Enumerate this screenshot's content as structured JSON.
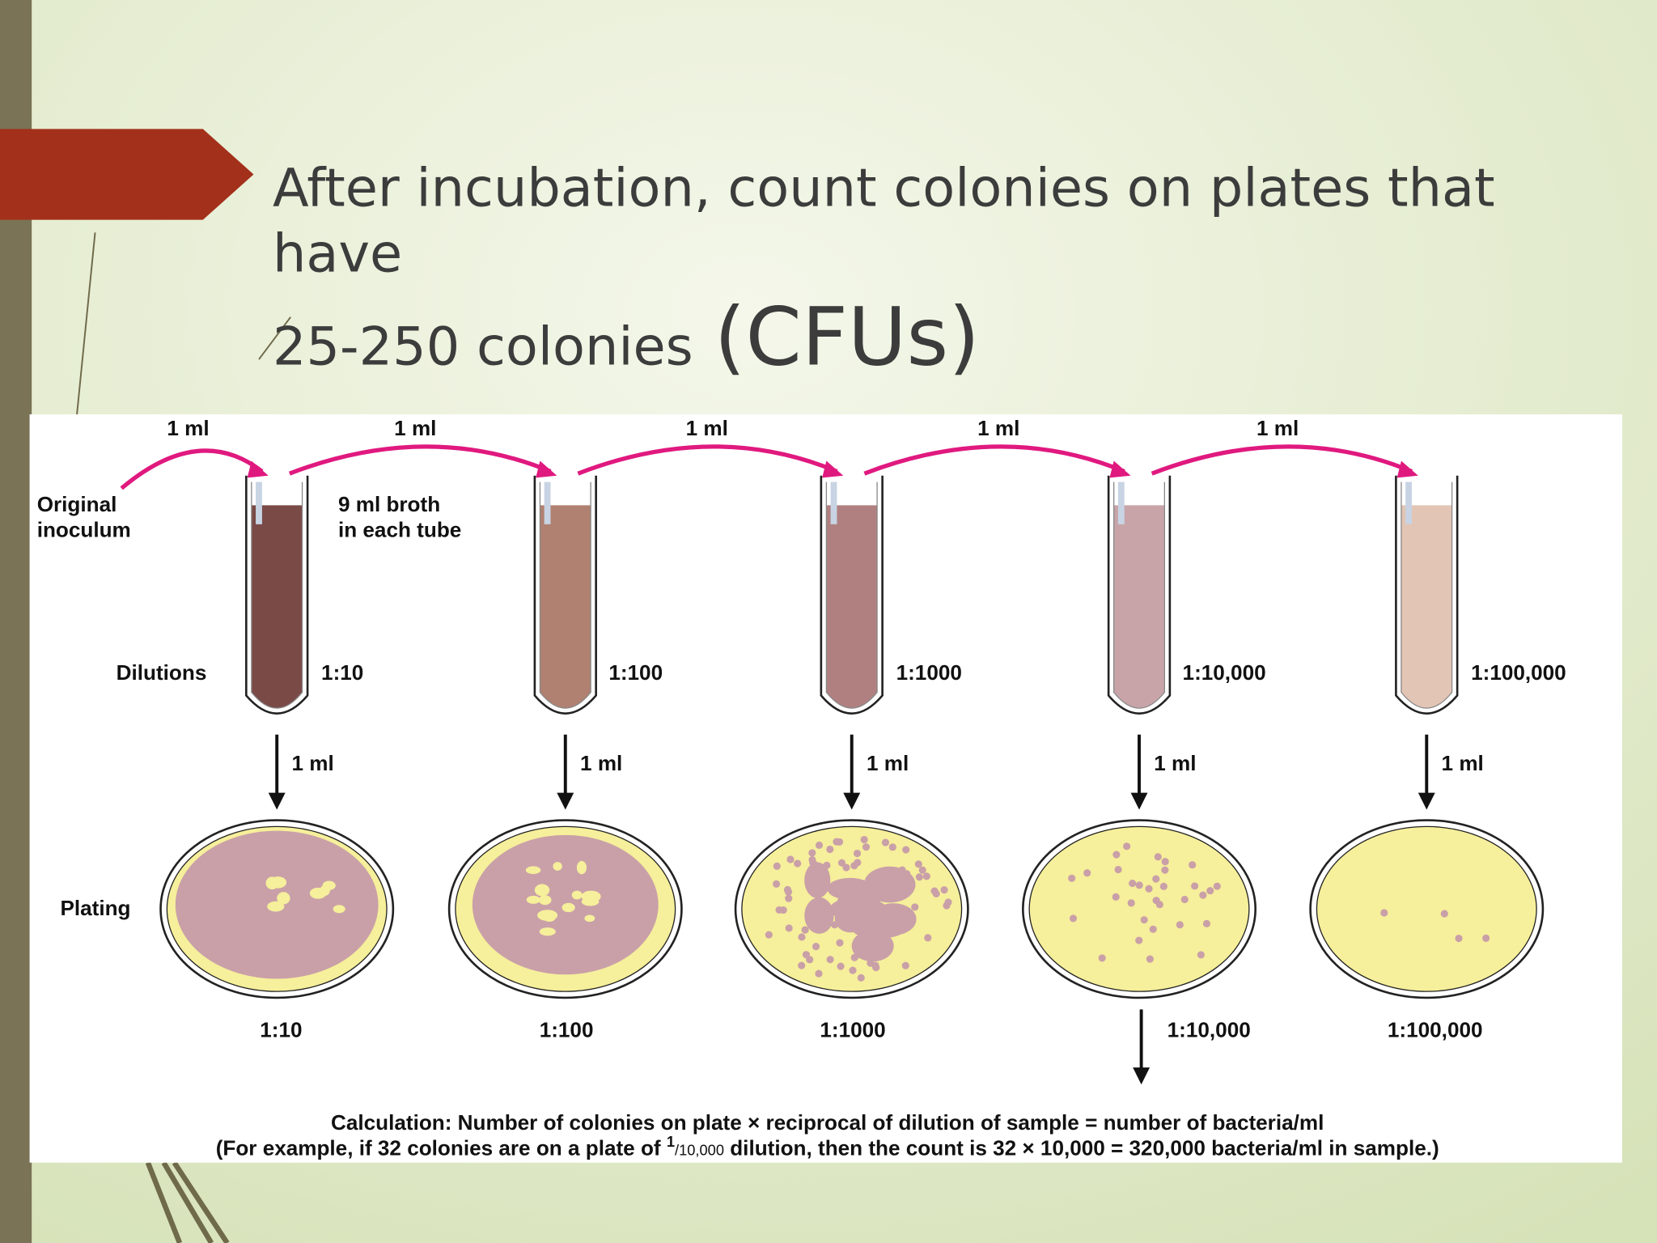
{
  "slide": {
    "title_line1": "After incubation, count colonies on plates that",
    "title_line1b": "have",
    "title_line2": "25-250 colonies",
    "title_line2_emphasis": "(CFUs)"
  },
  "diagram": {
    "transfer_labels": [
      "1 ml",
      "1 ml",
      "1 ml",
      "1 ml",
      "1 ml"
    ],
    "original_inoculum": [
      "Original",
      "inoculum"
    ],
    "broth_note": [
      "9 ml broth",
      "in each tube"
    ],
    "dilutions_label": "Dilutions",
    "tube_dilutions": [
      "1:10",
      "1:100",
      "1:1000",
      "1:10,000",
      "1:100,000"
    ],
    "plating_transfer_labels": [
      "1 ml",
      "1 ml",
      "1 ml",
      "1 ml",
      "1 ml"
    ],
    "plating_label": "Plating",
    "plate_dilutions": [
      "1:10",
      "1:100",
      "1:1000",
      "1:10,000",
      "1:100,000"
    ],
    "calculation": "Calculation: Number of colonies on plate × reciprocal of dilution of sample = number of bacteria/ml",
    "example": {
      "before": "(For example, if 32 colonies are on a plate of ",
      "numerator": "1",
      "denominator": "/10,000",
      "after": " dilution, then the count is 32 × 10,000 = 320,000 bacteria/ml in sample.)"
    }
  }
}
